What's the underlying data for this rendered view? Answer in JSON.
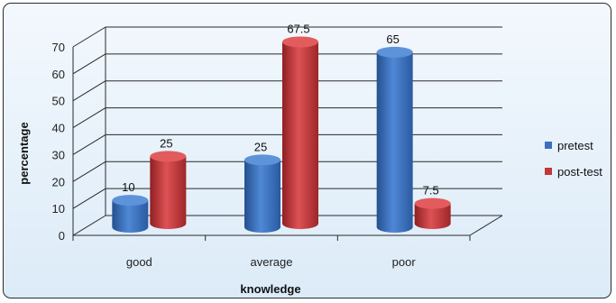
{
  "chart_data": {
    "type": "bar",
    "xlabel": "knowledge",
    "ylabel": "percentage",
    "categories": [
      "good",
      "average",
      "poor"
    ],
    "ylim": [
      0,
      70
    ],
    "yticks": [
      0,
      10,
      20,
      30,
      40,
      50,
      60,
      70
    ],
    "grid": true,
    "legend_position": "right",
    "series": [
      {
        "name": "pretest",
        "values": [
          10,
          25,
          65
        ],
        "labels": [
          "10",
          "25",
          "65"
        ],
        "color": "#3a6fbf"
      },
      {
        "name": "post-test",
        "values": [
          25,
          67.5,
          7.5
        ],
        "labels": [
          "25",
          "67.5",
          "7.5"
        ],
        "color": "#c0383b"
      }
    ]
  }
}
